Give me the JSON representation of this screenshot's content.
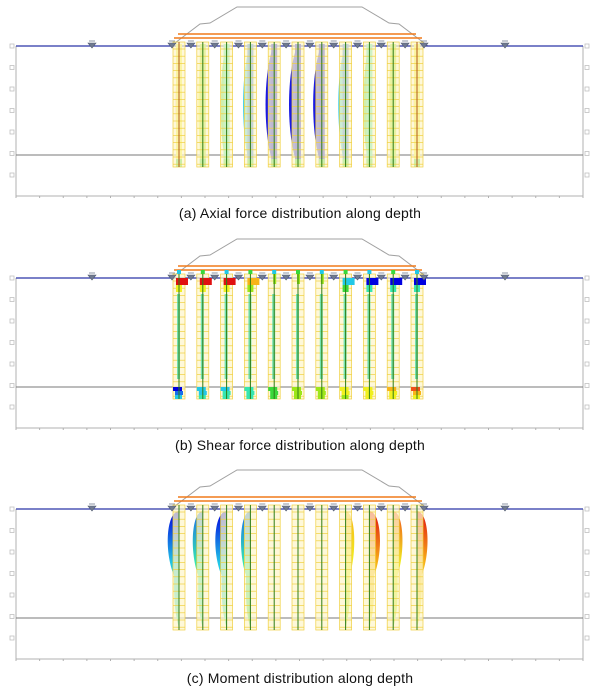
{
  "figure": {
    "panels": [
      {
        "id": "a",
        "caption": "(a) Axial force distribution along depth",
        "type": "axial"
      },
      {
        "id": "b",
        "caption": "(b) Shear force distribution along depth",
        "type": "shear"
      },
      {
        "id": "c",
        "caption": "(c) Moment distribution along depth",
        "type": "moment"
      }
    ],
    "pile_count": 11,
    "colors": {
      "ground_line": "#2a35a8",
      "bearing_layer_line": "#7a7a7a",
      "frame": "#b0b0b0",
      "embankment": "#a0a0a0",
      "cap_beam": "#f07a1a",
      "pile_mesh_fill": "#fdf6cc",
      "pile_mesh_line": "#f0d040",
      "pile_core": "#2e7d16",
      "support_marker": "#707a90"
    },
    "colormap": [
      "#0000e0",
      "#1a6ee8",
      "#22c8e6",
      "#36e6b0",
      "#3ad83a",
      "#9ee61a",
      "#f0f020",
      "#f8b418",
      "#f0501a",
      "#e01010"
    ]
  },
  "chart_data": [
    {
      "type": "diagram",
      "title": "(a) Axial force distribution along depth",
      "piles": 11,
      "relative_axial_magnitude": [
        0.15,
        0.35,
        0.55,
        0.75,
        0.95,
        1.0,
        0.95,
        0.75,
        0.55,
        0.35,
        0.15
      ],
      "note": "Compression largest in central piles (blue), smallest at edge piles (yellow)"
    },
    {
      "type": "diagram",
      "title": "(b) Shear force distribution along depth",
      "piles": 11,
      "top_shear_sign": [
        1,
        1,
        1,
        0.6,
        0,
        0,
        0,
        -0.5,
        -1,
        -1,
        -1
      ],
      "bottom_shear_sign": [
        -0.9,
        -0.6,
        -0.5,
        -0.4,
        -0.2,
        0,
        0.2,
        0.3,
        0.4,
        0.5,
        0.7
      ],
      "note": "Concentrated shear at pile heads (red left, blue right) and near bearing layer"
    },
    {
      "type": "diagram",
      "title": "(c) Moment distribution along depth",
      "piles": 11,
      "moment_sign": [
        -1,
        -0.8,
        -1,
        -0.7,
        0,
        0,
        0,
        0.6,
        0.9,
        0.7,
        0.9
      ],
      "note": "Negative (blue) moments on left piles, positive (red) on right piles, peak ~1/4 depth below head"
    }
  ]
}
